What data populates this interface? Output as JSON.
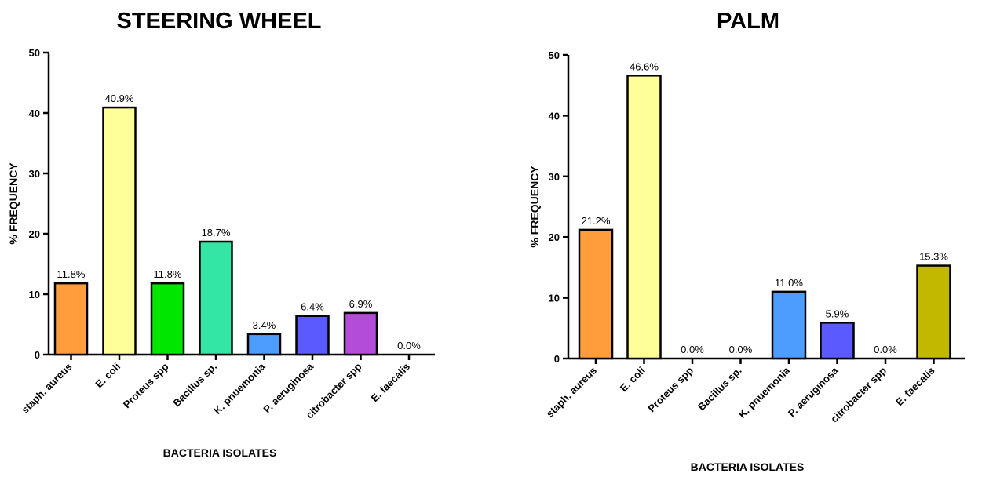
{
  "chart_data": [
    {
      "type": "bar",
      "title": "STEERING WHEEL",
      "xlabel": "BACTERIA ISOLATES",
      "ylabel": "% FREQUENCY",
      "ylim": [
        0,
        50
      ],
      "yticks": [
        0,
        10,
        20,
        30,
        40,
        50
      ],
      "categories": [
        "staph. aureus",
        "E. coli",
        "Proteus spp",
        "Bacillus sp.",
        "K. pnuemonia",
        "P.  aeruginosa",
        "citrobacter spp",
        "E.  faecalis"
      ],
      "values": [
        11.8,
        40.9,
        11.8,
        18.7,
        3.4,
        6.4,
        6.9,
        0.0
      ],
      "data_labels": [
        "11.8%",
        "40.9%",
        "11.8%",
        "18.7%",
        "3.4%",
        "6.4%",
        "6.9%",
        "0.0%"
      ],
      "colors": [
        "#ff9d3c",
        "#ffff99",
        "#00e600",
        "#33e6a6",
        "#4d9dff",
        "#5a5aff",
        "#b34dd9",
        "#888888"
      ],
      "grid": false,
      "legend": "none"
    },
    {
      "type": "bar",
      "title": "PALM",
      "xlabel": "BACTERIA ISOLATES",
      "ylabel": "% FREQUENCY",
      "ylim": [
        0,
        50
      ],
      "yticks": [
        0,
        10,
        20,
        30,
        40,
        50
      ],
      "categories": [
        "staph. aureus",
        "E. coli",
        "Proteus spp",
        "Bacillus sp.",
        "K. pnuemonia",
        "P.  aeruginosa",
        "citrobacter spp",
        "E.  faecalis"
      ],
      "values": [
        21.2,
        46.6,
        0.0,
        0.0,
        11.0,
        5.9,
        0.0,
        15.3
      ],
      "data_labels": [
        "21.2%",
        "46.6%",
        "0.0%",
        "0.0%",
        "11.0%",
        "5.9%",
        "0.0%",
        "15.3%"
      ],
      "colors": [
        "#ff9d3c",
        "#ffff99",
        "#00e600",
        "#33e6a6",
        "#4d9dff",
        "#5a5aff",
        "#b34dd9",
        "#c2b800"
      ],
      "grid": false,
      "legend": "none"
    }
  ]
}
